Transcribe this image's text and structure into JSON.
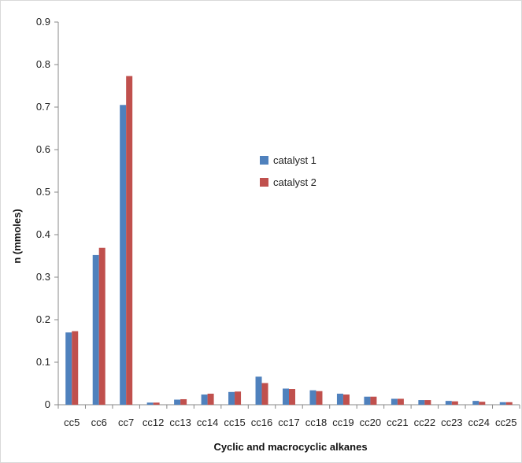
{
  "chart_data": {
    "type": "bar",
    "title": "",
    "xlabel": "Cyclic and macrocyclic alkanes",
    "ylabel": "n (mmoles)",
    "ylim": [
      0,
      0.9
    ],
    "yticks": [
      "0",
      "0.1",
      "0.2",
      "0.3",
      "0.4",
      "0.5",
      "0.6",
      "0.7",
      "0.8",
      "0.9"
    ],
    "grid": false,
    "legend_position": "center",
    "categories": [
      "cc5",
      "cc6",
      "cc7",
      "cc12",
      "cc13",
      "cc14",
      "cc15",
      "cc16",
      "cc17",
      "cc18",
      "cc19",
      "cc20",
      "cc21",
      "cc22",
      "cc23",
      "cc24",
      "cc25"
    ],
    "series": [
      {
        "name": "catalyst 1",
        "color": "#4f81bd",
        "values": [
          0.17,
          0.352,
          0.705,
          0.005,
          0.012,
          0.024,
          0.03,
          0.066,
          0.038,
          0.034,
          0.026,
          0.019,
          0.014,
          0.011,
          0.009,
          0.009,
          0.006
        ]
      },
      {
        "name": "catalyst 2",
        "color": "#c0504d",
        "values": [
          0.173,
          0.369,
          0.773,
          0.005,
          0.013,
          0.026,
          0.031,
          0.051,
          0.037,
          0.032,
          0.024,
          0.019,
          0.014,
          0.011,
          0.008,
          0.007,
          0.006
        ]
      }
    ]
  }
}
